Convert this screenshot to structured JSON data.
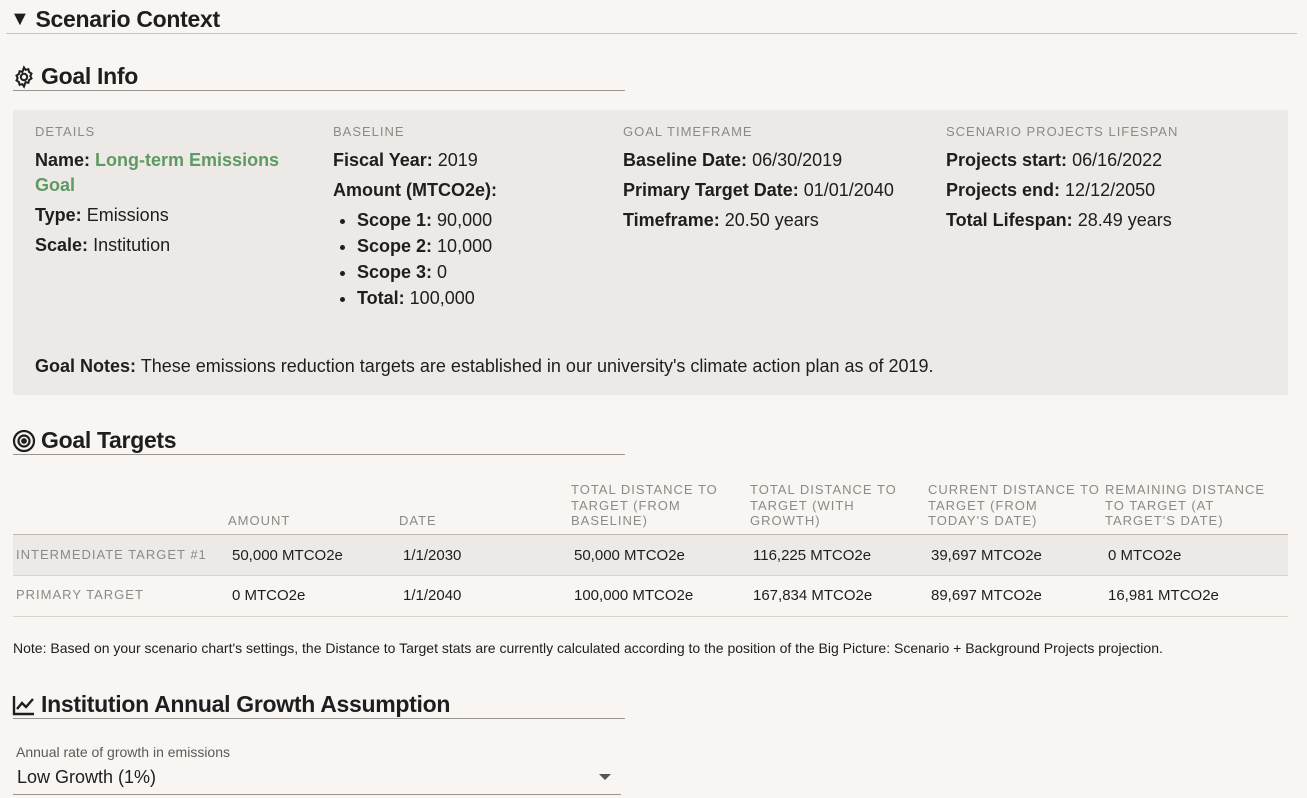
{
  "scenario": {
    "title": "Scenario Context",
    "toggle": "▼"
  },
  "goal_info": {
    "heading": "Goal Info",
    "details": {
      "label": "DETAILS",
      "name_key": "Name:",
      "name_value": "Long-term Emissions Goal",
      "type_key": "Type:",
      "type_value": "Emissions",
      "scale_key": "Scale:",
      "scale_value": "Institution"
    },
    "baseline": {
      "label": "BASELINE",
      "fy_key": "Fiscal Year:",
      "fy_value": "2019",
      "amount_key": "Amount (MTCO2e):",
      "scopes": [
        {
          "key": "Scope 1:",
          "value": "90,000"
        },
        {
          "key": "Scope 2:",
          "value": "10,000"
        },
        {
          "key": "Scope 3:",
          "value": "0"
        },
        {
          "key": "Total:",
          "value": "100,000"
        }
      ]
    },
    "timeframe": {
      "label": "GOAL TIMEFRAME",
      "baseline_key": "Baseline Date:",
      "baseline_value": "06/30/2019",
      "primary_key": "Primary Target Date:",
      "primary_value": "01/01/2040",
      "timeframe_key": "Timeframe:",
      "timeframe_value": "20.50 years"
    },
    "lifespan": {
      "label": "SCENARIO PROJECTS LIFESPAN",
      "start_key": "Projects start:",
      "start_value": "06/16/2022",
      "end_key": "Projects end:",
      "end_value": "12/12/2050",
      "total_key": "Total Lifespan:",
      "total_value": "28.49 years"
    },
    "notes_key": "Goal Notes:",
    "notes_value": "These emissions reduction targets are established in our university's climate action plan as of 2019."
  },
  "goal_targets": {
    "heading": "Goal Targets",
    "columns": [
      "AMOUNT",
      "DATE",
      "TOTAL DISTANCE TO TARGET (FROM BASELINE)",
      "TOTAL DISTANCE TO TARGET (WITH GROWTH)",
      "CURRENT DISTANCE TO TARGET (FROM TODAY'S DATE)",
      "REMAINING DISTANCE TO TARGET (AT TARGET'S DATE)"
    ],
    "rows": [
      {
        "label": "INTERMEDIATE TARGET #1",
        "cells": [
          "50,000 MTCO2e",
          "1/1/2030",
          "50,000 MTCO2e",
          "116,225 MTCO2e",
          "39,697 MTCO2e",
          "0 MTCO2e"
        ]
      },
      {
        "label": "PRIMARY TARGET",
        "cells": [
          "0 MTCO2e",
          "1/1/2040",
          "100,000 MTCO2e",
          "167,834 MTCO2e",
          "89,697 MTCO2e",
          "16,981 MTCO2e"
        ]
      }
    ],
    "note": "Note: Based on your scenario chart's settings, the Distance to Target stats are currently calculated according to the position of the Big Picture: Scenario + Background Projects projection."
  },
  "growth": {
    "heading": "Institution Annual Growth Assumption",
    "select_label": "Annual rate of growth in emissions",
    "select_value": "Low Growth (1%)"
  },
  "colors": {
    "accent_green": "#5e9a62",
    "panel_bg": "#ece9e7",
    "page_bg": "#f8f5f2"
  }
}
